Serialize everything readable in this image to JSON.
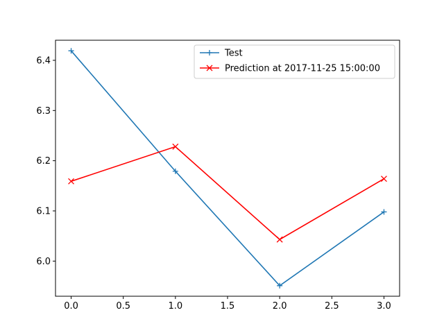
{
  "chart_data": {
    "type": "line",
    "title": "",
    "xlabel": "",
    "ylabel": "",
    "x": [
      0,
      1,
      2,
      3
    ],
    "xlim": [
      -0.15,
      3.15
    ],
    "ylim": [
      5.93,
      6.44
    ],
    "xticks": [
      "0.0",
      "0.5",
      "1.0",
      "1.5",
      "2.0",
      "2.5",
      "3.0"
    ],
    "yticks": [
      "6.0",
      "6.1",
      "6.2",
      "6.3",
      "6.4"
    ],
    "grid": false,
    "legend_position": "top-right",
    "series": [
      {
        "name": "Test",
        "values": [
          6.419,
          6.179,
          5.951,
          6.098
        ],
        "color": "#1f77b4",
        "marker": "plus"
      },
      {
        "name": "Prediction at 2017-11-25 15:00:00",
        "values": [
          6.159,
          6.228,
          6.043,
          6.164
        ],
        "color": "#ff0000",
        "marker": "x"
      }
    ]
  }
}
